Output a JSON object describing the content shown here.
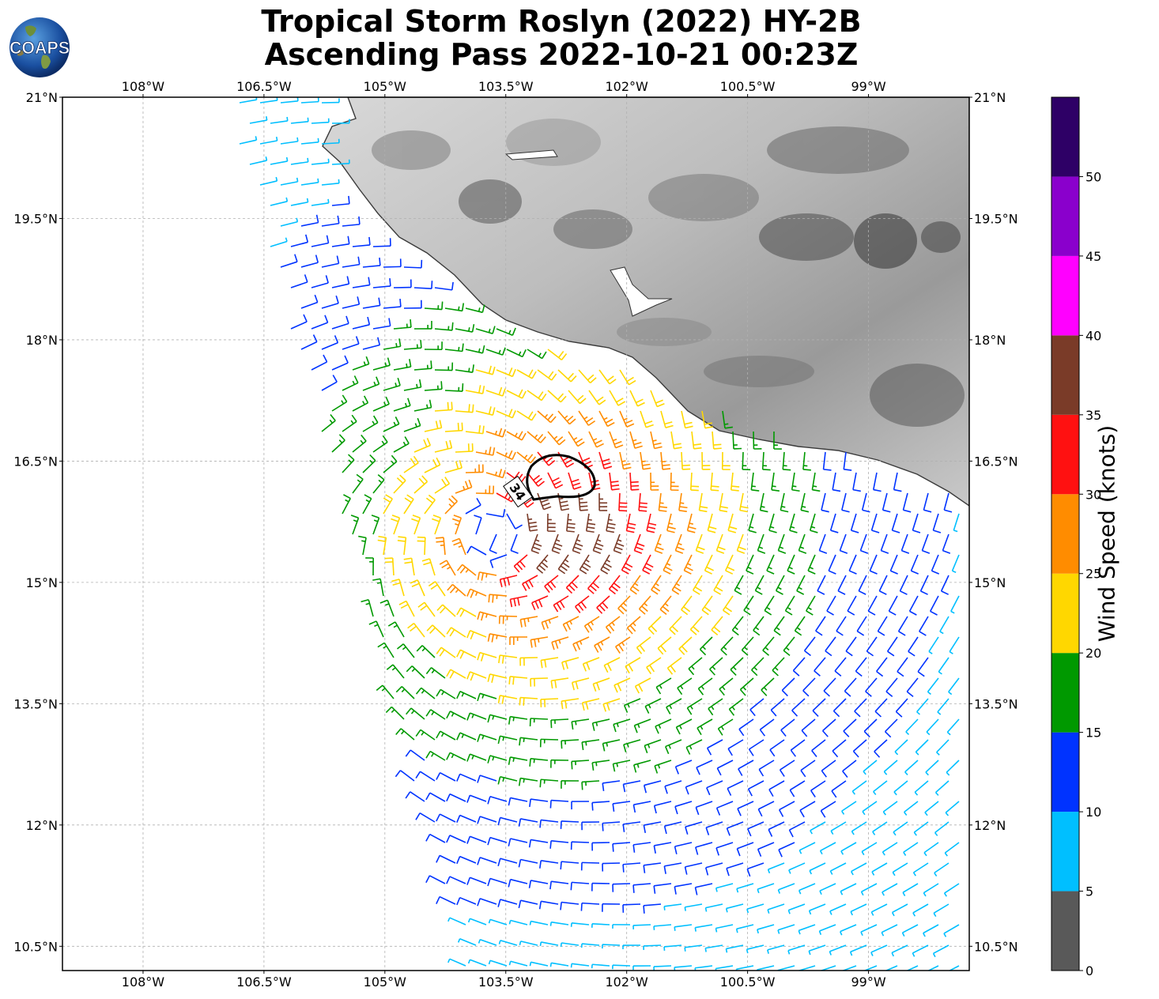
{
  "title_line1": "Tropical Storm Roslyn (2022) HY-2B",
  "title_line2": "Ascending Pass 2022-10-21 00:23Z",
  "logo_text": "COAPS",
  "x_ticks": [
    "108°W",
    "106.5°W",
    "105°W",
    "103.5°W",
    "102°W",
    "100.5°W",
    "99°W"
  ],
  "y_ticks": [
    "21°N",
    "19.5°N",
    "18°N",
    "16.5°N",
    "15°N",
    "13.5°N",
    "12°N",
    "10.5°N"
  ],
  "contour_label": "34",
  "colorbar": {
    "label": "Wind Speed (knots)",
    "ticks": [
      "0",
      "5",
      "10",
      "15",
      "20",
      "25",
      "30",
      "35",
      "40",
      "45",
      "50"
    ],
    "colors": [
      "#595959",
      "#00bfff",
      "#0033ff",
      "#009900",
      "#ffd700",
      "#ff8c00",
      "#ff1111",
      "#7a3b28",
      "#ff00ff",
      "#8a00cc",
      "#2e0066"
    ]
  },
  "chart_data": {
    "type": "wind-barb-map",
    "title": "Tropical Storm Roslyn (2022) HY-2B Ascending Pass 2022-10-21 00:23Z",
    "xlim": [
      -109,
      -97.75
    ],
    "ylim": [
      10.2,
      21
    ],
    "storm_center": {
      "lon": -103.7,
      "lat": 15.6
    },
    "contour_34kt_center": {
      "lon": -102.7,
      "lat": 16.3
    },
    "colorbar_range": [
      0,
      55
    ]
  }
}
